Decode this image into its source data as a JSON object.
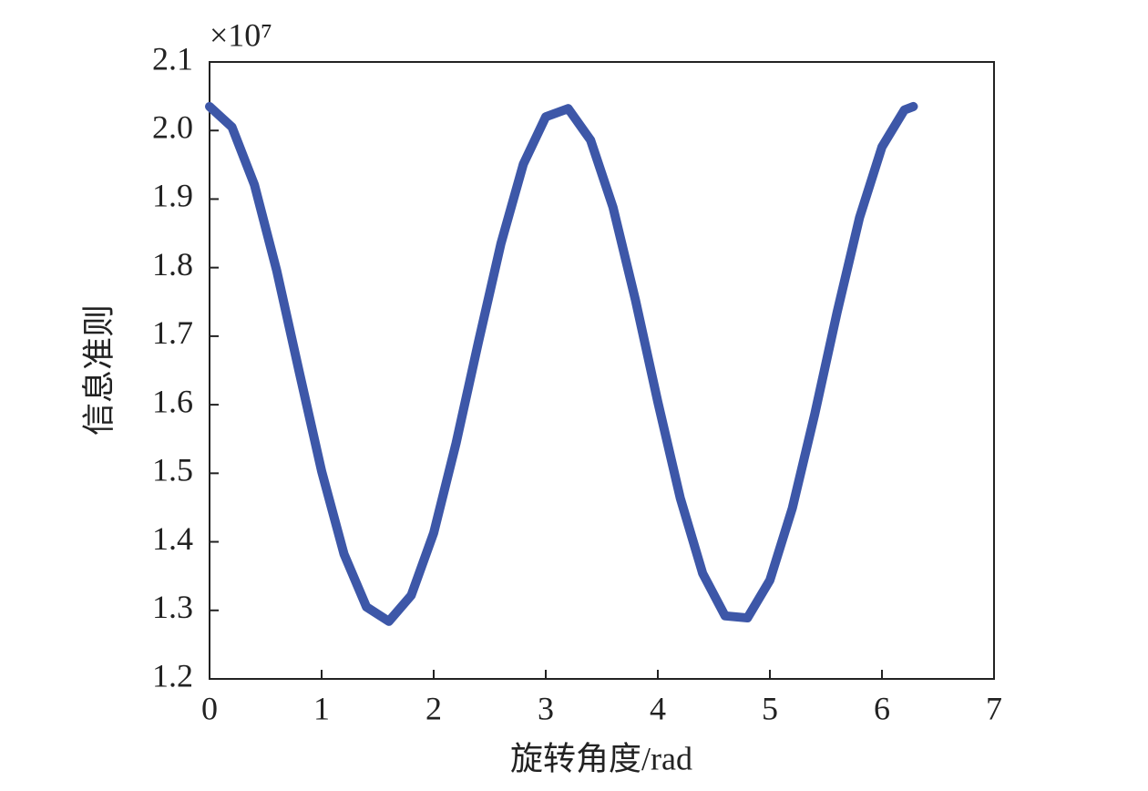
{
  "chart_data": {
    "type": "line",
    "x_label": "旋转角度/rad",
    "y_label": "信息准则",
    "y_multiplier": "×10⁷",
    "x": [
      0,
      0.2,
      0.4,
      0.6,
      0.8,
      1.0,
      1.2,
      1.4,
      1.6,
      1.8,
      2.0,
      2.2,
      2.4,
      2.6,
      2.8,
      3.0,
      3.2,
      3.4,
      3.6,
      3.8,
      4.0,
      4.2,
      4.4,
      4.6,
      4.8,
      5.0,
      5.2,
      5.4,
      5.6,
      5.8,
      6.0,
      6.2,
      6.28
    ],
    "values": [
      2.035,
      2.005,
      1.921,
      1.795,
      1.648,
      1.503,
      1.382,
      1.305,
      1.284,
      1.322,
      1.413,
      1.544,
      1.692,
      1.835,
      1.951,
      2.02,
      2.032,
      1.986,
      1.888,
      1.753,
      1.604,
      1.464,
      1.354,
      1.292,
      1.289,
      1.344,
      1.449,
      1.586,
      1.735,
      1.873,
      1.976,
      2.03,
      2.035
    ],
    "color": "#3d57a8",
    "xlim": [
      0,
      7
    ],
    "xticks": [
      0,
      1,
      2,
      3,
      4,
      5,
      6,
      7
    ],
    "ylim": [
      1.2,
      2.1
    ],
    "yticks": [
      1.2,
      1.3,
      1.4,
      1.5,
      1.6,
      1.7,
      1.8,
      1.9,
      {
        "value": 2,
        "label": "2.0"
      },
      2.1
    ]
  }
}
